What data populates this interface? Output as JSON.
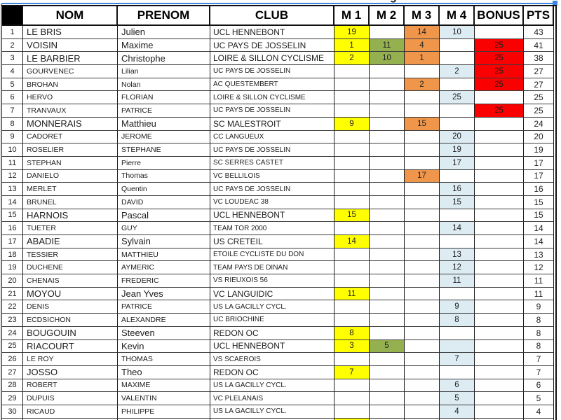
{
  "title_fragment": "g",
  "selection": {
    "color": "#3E86E2",
    "handle": "selection-handle"
  },
  "table": {
    "headers": {
      "rank": "",
      "nom": "NOM",
      "prenom": "PRENOM",
      "club": "CLUB",
      "m1": "M 1",
      "m2": "M 2",
      "m3": "M 3",
      "m4": "M 4",
      "bonus": "BONUS",
      "pts": "PTS"
    },
    "column_order": [
      "rank",
      "nom",
      "prenom",
      "club",
      "m1",
      "m2",
      "m3",
      "m4",
      "bonus",
      "pts"
    ],
    "fill_colors": {
      "m1": "#FFFF00",
      "m2": "#94B04F",
      "m3": "#F0964B",
      "m4": "#DDEBF2",
      "bonus": "#FB0000"
    },
    "rows": [
      {
        "rank": "1",
        "nom": "LE BRIS",
        "prenom": "Julien",
        "club": "UCL HENNEBONT",
        "m1": "19",
        "m2": "",
        "m3": "14",
        "m4": "10",
        "bonus": "",
        "pts": "43",
        "big": true
      },
      {
        "rank": "2",
        "nom": "VOISIN",
        "prenom": "Maxime",
        "club": "UC PAYS DE JOSSELIN",
        "m1": "1",
        "m2": "11",
        "m3": "4",
        "m4": "",
        "bonus": "25",
        "pts": "41",
        "big": true
      },
      {
        "rank": "3",
        "nom": "LE BARBIER",
        "prenom": "Christophe",
        "club": "LOIRE & SILLON CYCLISME",
        "m1": "2",
        "m2": "10",
        "m3": "1",
        "m4": "",
        "bonus": "25",
        "pts": "38",
        "big": true
      },
      {
        "rank": "4",
        "nom": "GOURVENEC",
        "prenom": "Lilian",
        "club": "UC PAYS DE JOSSELIN",
        "m1": "",
        "m2": "",
        "m3": "",
        "m4": "2",
        "bonus": "25",
        "pts": "27",
        "big": false
      },
      {
        "rank": "5",
        "nom": "BROHAN",
        "prenom": "Nolan",
        "club": "AC QUESTEMBERT",
        "m1": "",
        "m2": "",
        "m3": "2",
        "m4": "",
        "bonus": "25",
        "pts": "27",
        "big": false
      },
      {
        "rank": "6",
        "nom": "HERVO",
        "prenom": "FLORIAN",
        "club": "LOIRE & SILLON CYCLISME",
        "m1": "",
        "m2": "",
        "m3": "",
        "m4": "25",
        "bonus": "",
        "pts": "25",
        "big": false
      },
      {
        "rank": "7",
        "nom": "TRANVAUX",
        "prenom": "PATRICE",
        "club": "UC PAYS DE JOSSELIN",
        "m1": "",
        "m2": "",
        "m3": "",
        "m4": "",
        "bonus": "25",
        "pts": "25",
        "big": false
      },
      {
        "rank": "8",
        "nom": "MONNERAIS",
        "prenom": "Matthieu",
        "club": "SC MALESTROIT",
        "m1": "9",
        "m2": "",
        "m3": "15",
        "m4": "",
        "bonus": "",
        "pts": "24",
        "big": true
      },
      {
        "rank": "9",
        "nom": "CADORET",
        "prenom": "JEROME",
        "club": "CC LANGUEUX",
        "m1": "",
        "m2": "",
        "m3": "",
        "m4": "20",
        "bonus": "",
        "pts": "20",
        "big": false
      },
      {
        "rank": "10",
        "nom": "ROSELIER",
        "prenom": "STEPHANE",
        "club": "UC PAYS DE JOSSELIN",
        "m1": "",
        "m2": "",
        "m3": "",
        "m4": "19",
        "bonus": "",
        "pts": "19",
        "big": false
      },
      {
        "rank": "11",
        "nom": "STEPHAN",
        "prenom": "Pierre",
        "club": "SC SERRES CASTET",
        "m1": "",
        "m2": "",
        "m3": "",
        "m4": "17",
        "bonus": "",
        "pts": "17",
        "big": false
      },
      {
        "rank": "12",
        "nom": "DANIELO",
        "prenom": "Thomas",
        "club": "VC BELLILOIS",
        "m1": "",
        "m2": "",
        "m3": "17",
        "m4": "",
        "bonus": "",
        "pts": "17",
        "big": false
      },
      {
        "rank": "13",
        "nom": "MERLET",
        "prenom": "Quentin",
        "club": "UC PAYS DE JOSSELIN",
        "m1": "",
        "m2": "",
        "m3": "",
        "m4": "16",
        "bonus": "",
        "pts": "16",
        "big": false
      },
      {
        "rank": "14",
        "nom": "BRUNEL",
        "prenom": "DAVID",
        "club": "VC LOUDEAC 38",
        "m1": "",
        "m2": "",
        "m3": "",
        "m4": "15",
        "bonus": "",
        "pts": "15",
        "big": false
      },
      {
        "rank": "15",
        "nom": "HARNOIS",
        "prenom": "Pascal",
        "club": "UCL HENNEBONT",
        "m1": "15",
        "m2": "",
        "m3": "",
        "m4": "",
        "bonus": "",
        "pts": "15",
        "big": true
      },
      {
        "rank": "16",
        "nom": "TUETER",
        "prenom": "GUY",
        "club": "TEAM TOR 2000",
        "m1": "",
        "m2": "",
        "m3": "",
        "m4": "14",
        "bonus": "",
        "pts": "14",
        "big": false
      },
      {
        "rank": "17",
        "nom": "ABADIE",
        "prenom": "Sylvain",
        "club": "US CRETEIL",
        "m1": "14",
        "m2": "",
        "m3": "",
        "m4": "",
        "bonus": "",
        "pts": "14",
        "big": true
      },
      {
        "rank": "18",
        "nom": "TESSIER",
        "prenom": "MATTHIEU",
        "club": "ETOILE CYCLISTE DU DON",
        "m1": "",
        "m2": "",
        "m3": "",
        "m4": "13",
        "bonus": "",
        "pts": "13",
        "big": false
      },
      {
        "rank": "19",
        "nom": "DUCHENE",
        "prenom": "AYMERIC",
        "club": "TEAM PAYS DE DINAN",
        "m1": "",
        "m2": "",
        "m3": "",
        "m4": "12",
        "bonus": "",
        "pts": "12",
        "big": false
      },
      {
        "rank": "20",
        "nom": "CHENAIS",
        "prenom": "FREDERIC",
        "club": "VS RIEUXOIS 56",
        "m1": "",
        "m2": "",
        "m3": "",
        "m4": "11",
        "bonus": "",
        "pts": "11",
        "big": false
      },
      {
        "rank": "21",
        "nom": "MOYOU",
        "prenom": "Jean Yves",
        "club": "VC LANGUIDIC",
        "m1": "11",
        "m2": "",
        "m3": "",
        "m4": "",
        "bonus": "",
        "pts": "11",
        "big": true
      },
      {
        "rank": "22",
        "nom": "DENIS",
        "prenom": "PATRICE",
        "club": "US LA GACILLY CYCL.",
        "m1": "",
        "m2": "",
        "m3": "",
        "m4": "9",
        "bonus": "",
        "pts": "9",
        "big": false
      },
      {
        "rank": "23",
        "nom": "ECDSICHON",
        "prenom": "ALEXANDRE",
        "club": "UC BRIOCHINE",
        "m1": "",
        "m2": "",
        "m3": "",
        "m4": "8",
        "bonus": "",
        "pts": "8",
        "big": false
      },
      {
        "rank": "24",
        "nom": "BOUGOUIN",
        "prenom": "Steeven",
        "club": "REDON OC",
        "m1": "8",
        "m2": "",
        "m3": "",
        "m4": "",
        "bonus": "",
        "pts": "8",
        "big": true
      },
      {
        "rank": "25",
        "nom": "RIACOURT",
        "prenom": "Kevin",
        "club": "UCL HENNEBONT",
        "m1": "3",
        "m2": "5",
        "m3": "",
        "m4": "",
        "m4_fill": true,
        "bonus": "",
        "pts": "8",
        "big": true
      },
      {
        "rank": "26",
        "nom": "LE ROY",
        "prenom": "THOMAS",
        "club": "VS SCAEROIS",
        "m1": "",
        "m2": "",
        "m3": "",
        "m4": "7",
        "bonus": "",
        "pts": "7",
        "big": false
      },
      {
        "rank": "27",
        "nom": "JOSSO",
        "prenom": "Theo",
        "club": "REDON OC",
        "m1": "7",
        "m2": "",
        "m3": "",
        "m4": "",
        "bonus": "",
        "pts": "7",
        "big": true
      },
      {
        "rank": "28",
        "nom": "ROBERT",
        "prenom": "MAXIME",
        "club": "US LA GACILLY CYCL.",
        "m1": "",
        "m2": "",
        "m3": "",
        "m4": "6",
        "bonus": "",
        "pts": "6",
        "big": false
      },
      {
        "rank": "29",
        "nom": "DUPUIS",
        "prenom": "VALENTIN",
        "club": "VC PLELANAIS",
        "m1": "",
        "m2": "",
        "m3": "",
        "m4": "5",
        "bonus": "",
        "pts": "5",
        "big": false
      },
      {
        "rank": "30",
        "nom": "RICAUD",
        "prenom": "PHILIPPE",
        "club": "US LA GACILLY CYCL.",
        "m1": "",
        "m2": "",
        "m3": "",
        "m4": "4",
        "bonus": "",
        "pts": "4",
        "big": false
      },
      {
        "rank": "",
        "nom": "",
        "prenom": "",
        "club": "",
        "m1": "",
        "m1_fill": true,
        "m2": "",
        "m3": "",
        "m4": "",
        "bonus": "",
        "pts": "",
        "big": false,
        "partial": true
      }
    ]
  }
}
